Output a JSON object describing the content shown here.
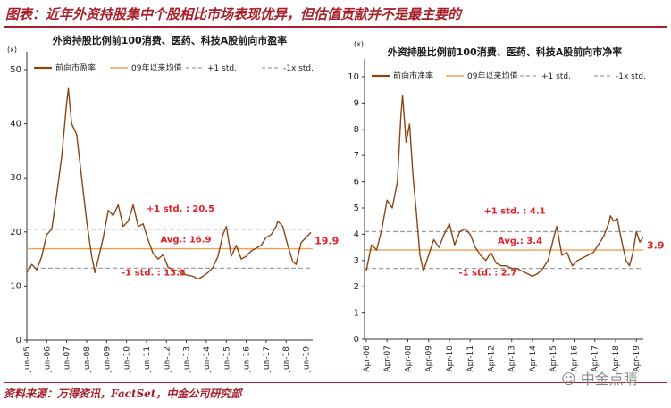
{
  "header": {
    "title": "图表：近年外资持股集中个股相比市场表现优异，但估值贡献并不是最主要的"
  },
  "footer": {
    "source": "资料来源：万得资讯，FactSet，中金公司研究部"
  },
  "watermark": {
    "text": "中金点睛"
  },
  "colors": {
    "line": "#8b4513",
    "avg": "#f0a050",
    "std": "#a0a0a0",
    "accent": "#a8202a",
    "red_text": "#e0202a"
  },
  "chart_data": [
    {
      "type": "line",
      "title": "外资持股比例前100消费、医药、科技A股前向市盈率",
      "unit": "(x)",
      "ylim": [
        0,
        50
      ],
      "yticks": [
        0,
        10,
        20,
        30,
        40,
        50
      ],
      "xlim": [
        "2005-06",
        "2019-10"
      ],
      "xticks": [
        "Jun-05",
        "Jun-06",
        "Jun-07",
        "Jun-08",
        "Jun-09",
        "Jun-10",
        "Jun-11",
        "Jun-12",
        "Jun-13",
        "Jun-14",
        "Jun-15",
        "Jun-16",
        "Jun-17",
        "Jun-18",
        "Jun-19"
      ],
      "legend": [
        "前向市盈率",
        "09年以来均值",
        "+1 std.",
        "-1x std."
      ],
      "legend_position": "top",
      "avg": 16.9,
      "plus_std": 20.5,
      "minus_std": 13.3,
      "annotations": {
        "plus": "+1 std. : 20.5",
        "avg": "Avg.: 16.9",
        "minus": "-1 std. : 13.3",
        "last": "19.9"
      },
      "series": [
        {
          "name": "前向市盈率",
          "points": [
            [
              "2005-06",
              12.5
            ],
            [
              "2005-09",
              14.0
            ],
            [
              "2005-12",
              13.0
            ],
            [
              "2006-03",
              15.5
            ],
            [
              "2006-06",
              19.5
            ],
            [
              "2006-09",
              20.5
            ],
            [
              "2006-12",
              27.0
            ],
            [
              "2007-03",
              34.0
            ],
            [
              "2007-06",
              44.0
            ],
            [
              "2007-07",
              46.5
            ],
            [
              "2007-09",
              40.0
            ],
            [
              "2007-12",
              38.0
            ],
            [
              "2008-03",
              30.0
            ],
            [
              "2008-06",
              22.0
            ],
            [
              "2008-09",
              15.5
            ],
            [
              "2008-11",
              12.5
            ],
            [
              "2009-01",
              15.0
            ],
            [
              "2009-04",
              19.0
            ],
            [
              "2009-07",
              24.0
            ],
            [
              "2009-10",
              23.0
            ],
            [
              "2010-01",
              25.0
            ],
            [
              "2010-04",
              21.0
            ],
            [
              "2010-07",
              22.0
            ],
            [
              "2010-10",
              25.0
            ],
            [
              "2011-01",
              21.0
            ],
            [
              "2011-04",
              21.5
            ],
            [
              "2011-07",
              18.5
            ],
            [
              "2011-10",
              16.0
            ],
            [
              "2012-01",
              15.0
            ],
            [
              "2012-04",
              15.8
            ],
            [
              "2012-07",
              13.5
            ],
            [
              "2012-10",
              13.0
            ],
            [
              "2013-01",
              12.8
            ],
            [
              "2013-04",
              12.2
            ],
            [
              "2013-07",
              12.0
            ],
            [
              "2013-10",
              11.8
            ],
            [
              "2014-01",
              11.3
            ],
            [
              "2014-04",
              11.8
            ],
            [
              "2014-07",
              12.5
            ],
            [
              "2014-10",
              13.5
            ],
            [
              "2015-01",
              15.5
            ],
            [
              "2015-04",
              19.5
            ],
            [
              "2015-06",
              21.0
            ],
            [
              "2015-09",
              15.5
            ],
            [
              "2015-12",
              17.5
            ],
            [
              "2016-03",
              15.0
            ],
            [
              "2016-06",
              15.5
            ],
            [
              "2016-09",
              16.5
            ],
            [
              "2016-12",
              17.0
            ],
            [
              "2017-03",
              17.5
            ],
            [
              "2017-06",
              19.0
            ],
            [
              "2017-09",
              19.5
            ],
            [
              "2017-12",
              21.0
            ],
            [
              "2018-01",
              22.0
            ],
            [
              "2018-04",
              21.0
            ],
            [
              "2018-07",
              17.5
            ],
            [
              "2018-10",
              14.5
            ],
            [
              "2018-12",
              14.0
            ],
            [
              "2019-03",
              18.0
            ],
            [
              "2019-06",
              19.0
            ],
            [
              "2019-09",
              19.9
            ]
          ]
        }
      ]
    },
    {
      "type": "line",
      "title": "外资持股比例前100消费、医药、科技A股前向市净率",
      "unit": "(x)",
      "ylim": [
        0,
        10
      ],
      "yticks": [
        0,
        1,
        2,
        3,
        4,
        5,
        6,
        7,
        8,
        9,
        10
      ],
      "xlim": [
        "2006-03",
        "2019-08"
      ],
      "xticks": [
        "Apr-06",
        "Apr-07",
        "Apr-08",
        "Apr-09",
        "Apr-10",
        "Apr-11",
        "Apr-12",
        "Apr-13",
        "Apr-14",
        "Apr-15",
        "Apr-16",
        "Apr-17",
        "Apr-18",
        "Apr-19"
      ],
      "legend": [
        "前向市净率",
        "09年以来均值",
        "+1 std.",
        "-1x std."
      ],
      "legend_position": "top",
      "avg": 3.4,
      "plus_std": 4.1,
      "minus_std": 2.7,
      "annotations": {
        "plus": "+1 std. : 4.1",
        "avg": "Avg.: 3.4",
        "minus": "-1 std. : 2.7",
        "last": "3.9"
      },
      "series": [
        {
          "name": "前向市净率",
          "points": [
            [
              "2006-04",
              2.6
            ],
            [
              "2006-07",
              3.6
            ],
            [
              "2006-10",
              3.4
            ],
            [
              "2007-01",
              4.2
            ],
            [
              "2007-04",
              5.3
            ],
            [
              "2007-07",
              5.0
            ],
            [
              "2007-10",
              6.0
            ],
            [
              "2007-12",
              8.5
            ],
            [
              "2008-01",
              9.3
            ],
            [
              "2008-03",
              7.5
            ],
            [
              "2008-05",
              8.2
            ],
            [
              "2008-07",
              6.2
            ],
            [
              "2008-09",
              4.8
            ],
            [
              "2008-11",
              3.2
            ],
            [
              "2009-01",
              2.6
            ],
            [
              "2009-04",
              3.2
            ],
            [
              "2009-07",
              3.8
            ],
            [
              "2009-10",
              3.5
            ],
            [
              "2010-01",
              4.0
            ],
            [
              "2010-04",
              4.4
            ],
            [
              "2010-07",
              3.6
            ],
            [
              "2010-10",
              4.1
            ],
            [
              "2011-01",
              4.2
            ],
            [
              "2011-04",
              4.0
            ],
            [
              "2011-07",
              3.5
            ],
            [
              "2011-10",
              3.2
            ],
            [
              "2012-01",
              3.0
            ],
            [
              "2012-04",
              3.3
            ],
            [
              "2012-07",
              2.9
            ],
            [
              "2012-10",
              2.8
            ],
            [
              "2013-01",
              2.8
            ],
            [
              "2013-04",
              2.7
            ],
            [
              "2013-07",
              2.7
            ],
            [
              "2013-10",
              2.6
            ],
            [
              "2014-01",
              2.5
            ],
            [
              "2014-04",
              2.4
            ],
            [
              "2014-07",
              2.5
            ],
            [
              "2014-10",
              2.7
            ],
            [
              "2015-01",
              3.0
            ],
            [
              "2015-04",
              3.8
            ],
            [
              "2015-06",
              4.3
            ],
            [
              "2015-09",
              3.2
            ],
            [
              "2015-12",
              3.3
            ],
            [
              "2016-03",
              2.8
            ],
            [
              "2016-06",
              3.0
            ],
            [
              "2016-09",
              3.1
            ],
            [
              "2016-12",
              3.2
            ],
            [
              "2017-03",
              3.3
            ],
            [
              "2017-06",
              3.6
            ],
            [
              "2017-09",
              3.9
            ],
            [
              "2017-12",
              4.4
            ],
            [
              "2018-01",
              4.7
            ],
            [
              "2018-03",
              4.5
            ],
            [
              "2018-05",
              4.6
            ],
            [
              "2018-07",
              3.9
            ],
            [
              "2018-10",
              3.0
            ],
            [
              "2018-12",
              2.8
            ],
            [
              "2019-02",
              3.3
            ],
            [
              "2019-04",
              4.1
            ],
            [
              "2019-06",
              3.7
            ],
            [
              "2019-08",
              3.9
            ]
          ]
        }
      ]
    }
  ]
}
